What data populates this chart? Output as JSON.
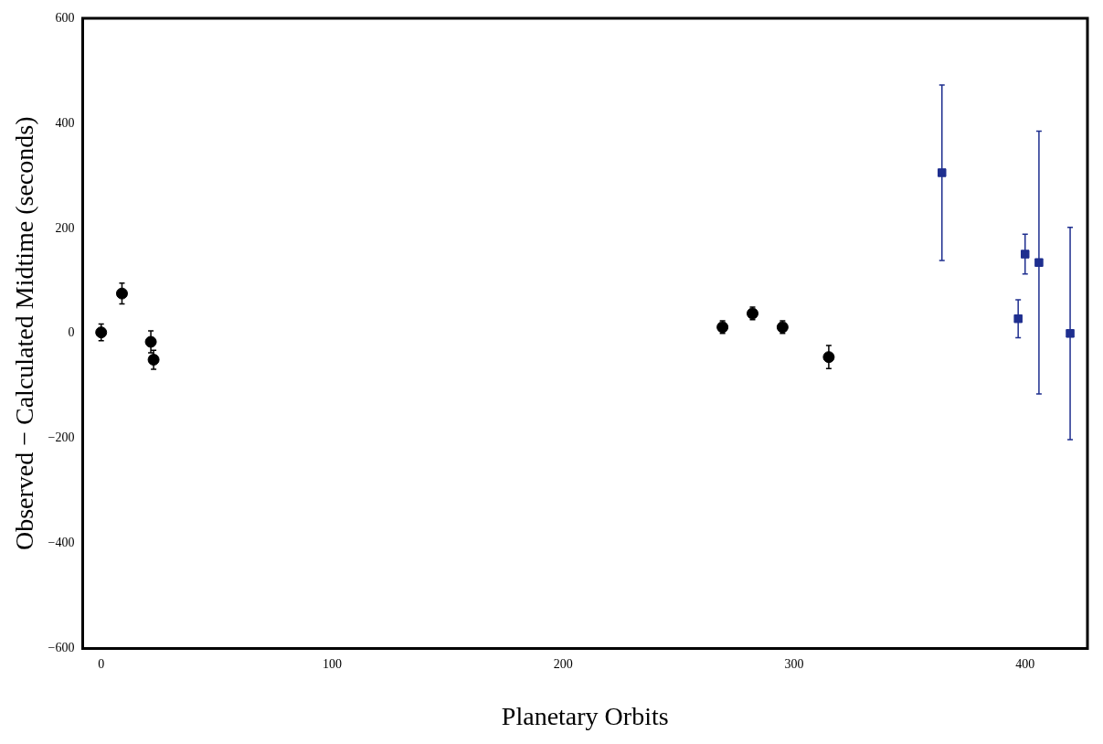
{
  "chart_data": {
    "type": "scatter",
    "xlabel": "Planetary Orbits",
    "ylabel": "Observed − Calculated Midtime (seconds)",
    "xlim": [
      -8,
      427
    ],
    "ylim": [
      -600,
      600
    ],
    "xticks": [
      0,
      100,
      200,
      300,
      400
    ],
    "yticks": [
      -600,
      -400,
      -200,
      0,
      200,
      400,
      600
    ],
    "grid": false,
    "legend": false,
    "series": [
      {
        "color": "#000000",
        "marker": "circle",
        "x": [
          0,
          9,
          21.5,
          22.7,
          269,
          282,
          295,
          315
        ],
        "values": [
          2,
          76,
          -16,
          -50,
          12,
          38,
          12,
          -45
        ],
        "errors": [
          16,
          20,
          21,
          18,
          12,
          12,
          12,
          22
        ]
      },
      {
        "color": "#1f2f8f",
        "marker": "square",
        "x": [
          364,
          397,
          400,
          406,
          419.5
        ],
        "values": [
          306,
          28,
          151,
          135,
          0
        ],
        "errors": [
          167,
          36,
          38,
          250,
          202
        ]
      }
    ]
  }
}
